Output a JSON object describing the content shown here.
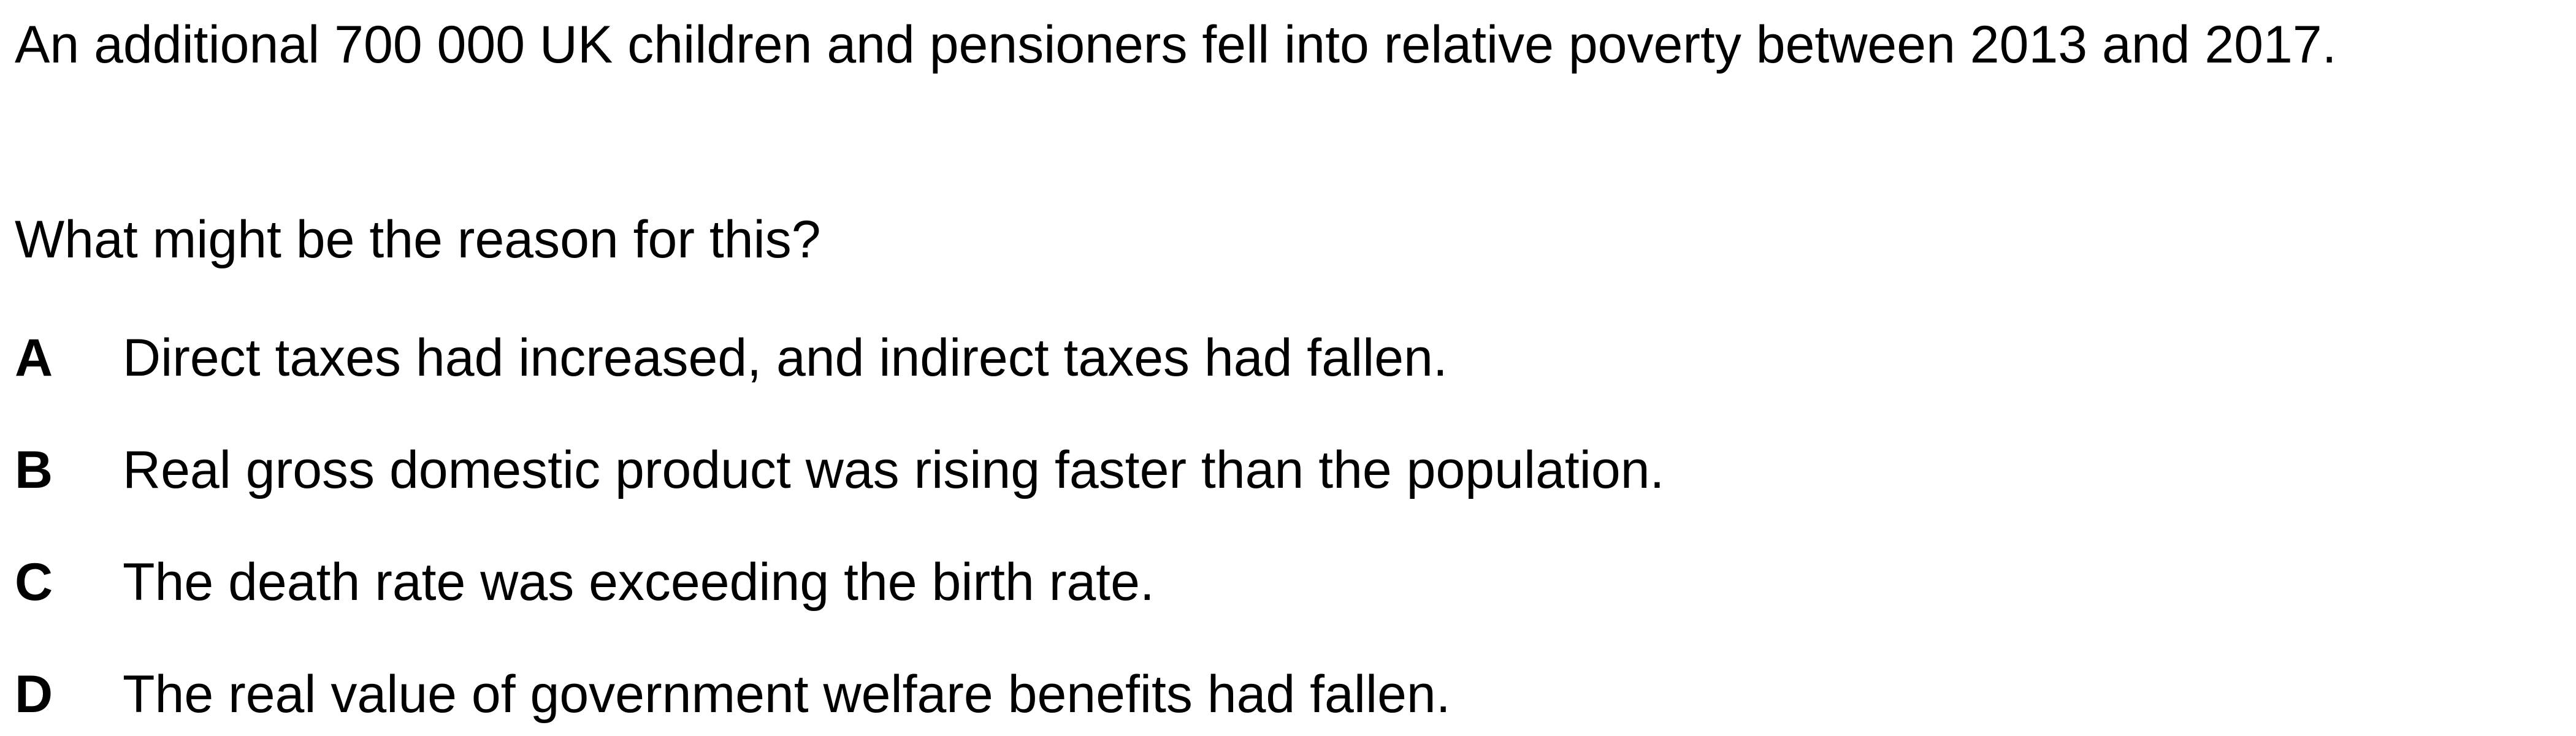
{
  "question": {
    "stem": "An additional 700 000 UK children and pensioners fell into relative poverty between 2013 and 2017.",
    "prompt": "What might be the reason for this?",
    "options": [
      {
        "letter": "A",
        "text": "Direct taxes had increased, and indirect taxes had fallen."
      },
      {
        "letter": "B",
        "text": "Real gross domestic product was rising faster than the population."
      },
      {
        "letter": "C",
        "text": "The death rate was exceeding the birth rate."
      },
      {
        "letter": "D",
        "text": "The real value of government welfare benefits had fallen."
      }
    ]
  }
}
